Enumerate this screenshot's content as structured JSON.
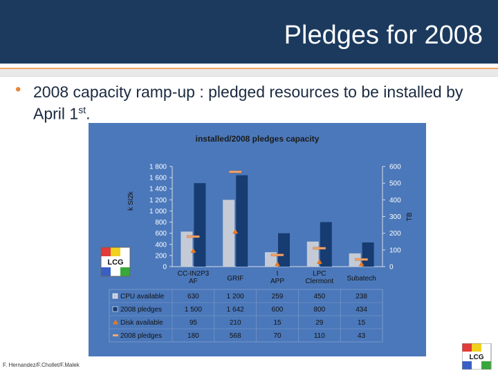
{
  "slide": {
    "title": "Pledges for 2008",
    "bullet": "2008 capacity ramp-up : pledged resources to be installed by April 1",
    "bullet_sup": "st",
    "bullet_end": ".",
    "footer": "F. Hernandez/F.Chollet/F.Malek",
    "logo_text": "LCG"
  },
  "colors": {
    "header": "#1b3a5e",
    "accent": "#e8863a",
    "panel": "#4b78ba",
    "cpu_available": "#c5cbd6",
    "cpu_pledges": "#163c72",
    "disk_available": "#e87a22",
    "disk_pledges": "#f3a970"
  },
  "chart_data": {
    "type": "bar",
    "title": "installed/2008 pledges capacity",
    "ylabel": "k SI2k",
    "y2label": "TB",
    "ylim": [
      0,
      1800
    ],
    "y2lim": [
      0,
      600
    ],
    "yticks": [
      "0",
      "200",
      "400",
      "600",
      "800",
      "1 000",
      "1 200",
      "1 400",
      "1 600",
      "1 800"
    ],
    "y2ticks": [
      "0",
      "100",
      "200",
      "300",
      "400",
      "500",
      "600"
    ],
    "categories": [
      "CC-IN2P3 AF",
      "GRIF",
      "I APP",
      "LPC Clermont",
      "Subatech"
    ],
    "series": [
      {
        "name": "CPU available",
        "axis": "left",
        "kind": "bar",
        "values": [
          630,
          1200,
          259,
          450,
          238
        ],
        "labels": [
          "630",
          "1 200",
          "259",
          "450",
          "238"
        ]
      },
      {
        "name": "2008 pledges",
        "axis": "left",
        "kind": "bar",
        "values": [
          1500,
          1642,
          600,
          800,
          434
        ],
        "labels": [
          "1 500",
          "1 642",
          "600",
          "800",
          "434"
        ]
      },
      {
        "name": "Disk available",
        "axis": "right",
        "kind": "triangle",
        "values": [
          95,
          210,
          15,
          29,
          15
        ],
        "labels": [
          "95",
          "210",
          "15",
          "29",
          "15"
        ]
      },
      {
        "name": "2008 pledges",
        "axis": "right",
        "kind": "dash",
        "values": [
          180,
          568,
          70,
          110,
          43
        ],
        "labels": [
          "180",
          "568",
          "70",
          "110",
          "43"
        ]
      }
    ]
  }
}
